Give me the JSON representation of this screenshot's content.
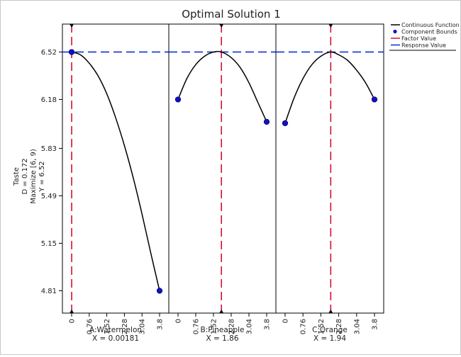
{
  "chart_data": {
    "type": "line",
    "title": "Optimal Solution 1",
    "ylabel_lines": [
      "Taste",
      "D = 0.172",
      "Maximize [6, 9)",
      "Y = 6.52"
    ],
    "ylim": [
      4.65,
      6.72
    ],
    "y_ticks": [
      "4.81",
      "5.15",
      "5.49",
      "5.83",
      "6.18",
      "6.52"
    ],
    "response_value": 6.52,
    "legend": {
      "placement": "top-right",
      "entries": [
        {
          "label": "Continuous Function",
          "color": "#000000",
          "kind": "line"
        },
        {
          "label": "Component Bounds",
          "color": "#1010c8",
          "kind": "dot"
        },
        {
          "label": "Factor Value",
          "color": "#d01030",
          "kind": "line"
        },
        {
          "label": "Response Value",
          "color": "#1030d8",
          "kind": "line"
        }
      ]
    },
    "panels": [
      {
        "factor": "A:Watermelon",
        "value_label": "X = 0.00181",
        "x_ticks": [
          "0",
          "0.76",
          "1.52",
          "2.28",
          "3.04",
          "3.8"
        ],
        "xlim": [
          0,
          3.8
        ],
        "factor_value": 0.00181,
        "points": [
          [
            0,
            6.52
          ],
          [
            0.38,
            6.5
          ],
          [
            0.76,
            6.44
          ],
          [
            1.14,
            6.35
          ],
          [
            1.52,
            6.22
          ],
          [
            1.9,
            6.05
          ],
          [
            2.28,
            5.85
          ],
          [
            2.66,
            5.62
          ],
          [
            3.04,
            5.36
          ],
          [
            3.42,
            5.08
          ],
          [
            3.8,
            4.81
          ]
        ],
        "bounds": [
          [
            0,
            6.52
          ],
          [
            3.8,
            4.81
          ]
        ]
      },
      {
        "factor": "B:Pineapple",
        "value_label": "X = 1.86",
        "x_ticks": [
          "0",
          "0.76",
          "1.52",
          "2.28",
          "3.04",
          "3.8"
        ],
        "xlim": [
          0,
          3.8
        ],
        "factor_value": 1.86,
        "points": [
          [
            0,
            6.18
          ],
          [
            0.38,
            6.33
          ],
          [
            0.76,
            6.43
          ],
          [
            1.14,
            6.49
          ],
          [
            1.52,
            6.52
          ],
          [
            1.86,
            6.52
          ],
          [
            2.28,
            6.48
          ],
          [
            2.66,
            6.41
          ],
          [
            3.04,
            6.3
          ],
          [
            3.42,
            6.16
          ],
          [
            3.8,
            6.02
          ]
        ],
        "bounds": [
          [
            0,
            6.18
          ],
          [
            3.8,
            6.02
          ]
        ]
      },
      {
        "factor": "C:Orange",
        "value_label": "X = 1.94",
        "x_ticks": [
          "0",
          "0.76",
          "1.52",
          "2.28",
          "3.04",
          "3.8"
        ],
        "xlim": [
          0,
          3.8
        ],
        "factor_value": 1.94,
        "points": [
          [
            0,
            6.01
          ],
          [
            0.38,
            6.19
          ],
          [
            0.76,
            6.33
          ],
          [
            1.14,
            6.43
          ],
          [
            1.52,
            6.49
          ],
          [
            1.94,
            6.52
          ],
          [
            2.28,
            6.5
          ],
          [
            2.66,
            6.46
          ],
          [
            3.04,
            6.39
          ],
          [
            3.42,
            6.3
          ],
          [
            3.8,
            6.18
          ]
        ],
        "bounds": [
          [
            0,
            6.01
          ],
          [
            3.8,
            6.18
          ]
        ]
      }
    ]
  }
}
